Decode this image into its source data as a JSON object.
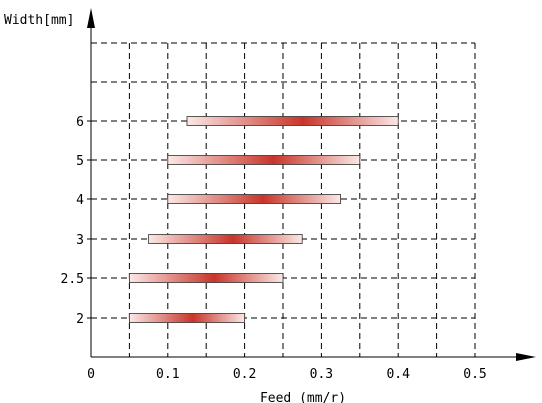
{
  "chart_data": {
    "type": "bar",
    "orientation": "horizontal-range",
    "xlabel": "Feed (mm/r)",
    "ylabel": "Width[mm]",
    "xlim": [
      0,
      0.5
    ],
    "x_ticks": [
      "0",
      "0.1",
      "0.2",
      "0.3",
      "0.4",
      "0.5"
    ],
    "categories": [
      "2",
      "2.5",
      "3",
      "4",
      "5",
      "6"
    ],
    "ranges": [
      {
        "width": "2",
        "start": 0.05,
        "end": 0.2
      },
      {
        "width": "2.5",
        "start": 0.05,
        "end": 0.25
      },
      {
        "width": "3",
        "start": 0.075,
        "end": 0.275
      },
      {
        "width": "4",
        "start": 0.1,
        "end": 0.325
      },
      {
        "width": "5",
        "start": 0.1,
        "end": 0.35
      },
      {
        "width": "6",
        "start": 0.125,
        "end": 0.4
      }
    ],
    "grid": true,
    "colors": {
      "bar_center": "#c8352a",
      "bar_edge": "#fbe8e6",
      "grid": "#000000"
    }
  }
}
